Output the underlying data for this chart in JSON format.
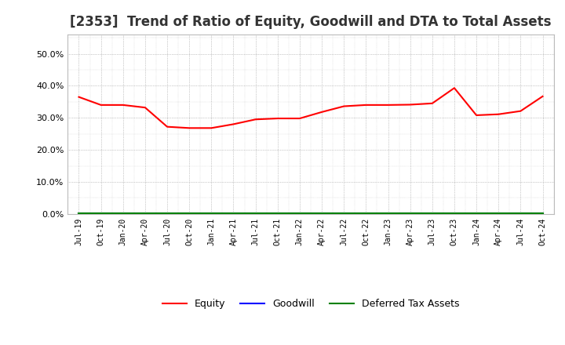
{
  "title": "[2353]  Trend of Ratio of Equity, Goodwill and DTA to Total Assets",
  "x_labels": [
    "Jul-19",
    "Oct-19",
    "Jan-20",
    "Apr-20",
    "Jul-20",
    "Oct-20",
    "Jan-21",
    "Apr-21",
    "Jul-21",
    "Oct-21",
    "Jan-22",
    "Apr-22",
    "Jul-22",
    "Oct-22",
    "Jan-23",
    "Apr-23",
    "Jul-23",
    "Oct-23",
    "Jan-24",
    "Apr-24",
    "Jul-24",
    "Oct-24"
  ],
  "equity": [
    0.365,
    0.34,
    0.34,
    0.332,
    0.272,
    0.268,
    0.268,
    0.28,
    0.295,
    0.298,
    0.298,
    0.318,
    0.336,
    0.34,
    0.34,
    0.341,
    0.345,
    0.393,
    0.308,
    0.311,
    0.321,
    0.367
  ],
  "goodwill": [
    0.001,
    0.001,
    0.001,
    0.001,
    0.001,
    0.001,
    0.001,
    0.001,
    0.001,
    0.001,
    0.001,
    0.001,
    0.001,
    0.001,
    0.001,
    0.001,
    0.001,
    0.001,
    0.001,
    0.001,
    0.001,
    0.001
  ],
  "dta": [
    0.001,
    0.001,
    0.001,
    0.001,
    0.001,
    0.001,
    0.001,
    0.001,
    0.001,
    0.001,
    0.001,
    0.001,
    0.001,
    0.001,
    0.001,
    0.001,
    0.001,
    0.001,
    0.001,
    0.001,
    0.001,
    0.001
  ],
  "equity_color": "#FF0000",
  "goodwill_color": "#0000FF",
  "dta_color": "#008000",
  "ylim": [
    0.0,
    0.56
  ],
  "yticks": [
    0.0,
    0.1,
    0.2,
    0.3,
    0.4,
    0.5
  ],
  "background_color": "#FFFFFF",
  "plot_bg_color": "#FFFFFF",
  "grid_color": "#999999",
  "title_fontsize": 12,
  "legend_labels": [
    "Equity",
    "Goodwill",
    "Deferred Tax Assets"
  ]
}
